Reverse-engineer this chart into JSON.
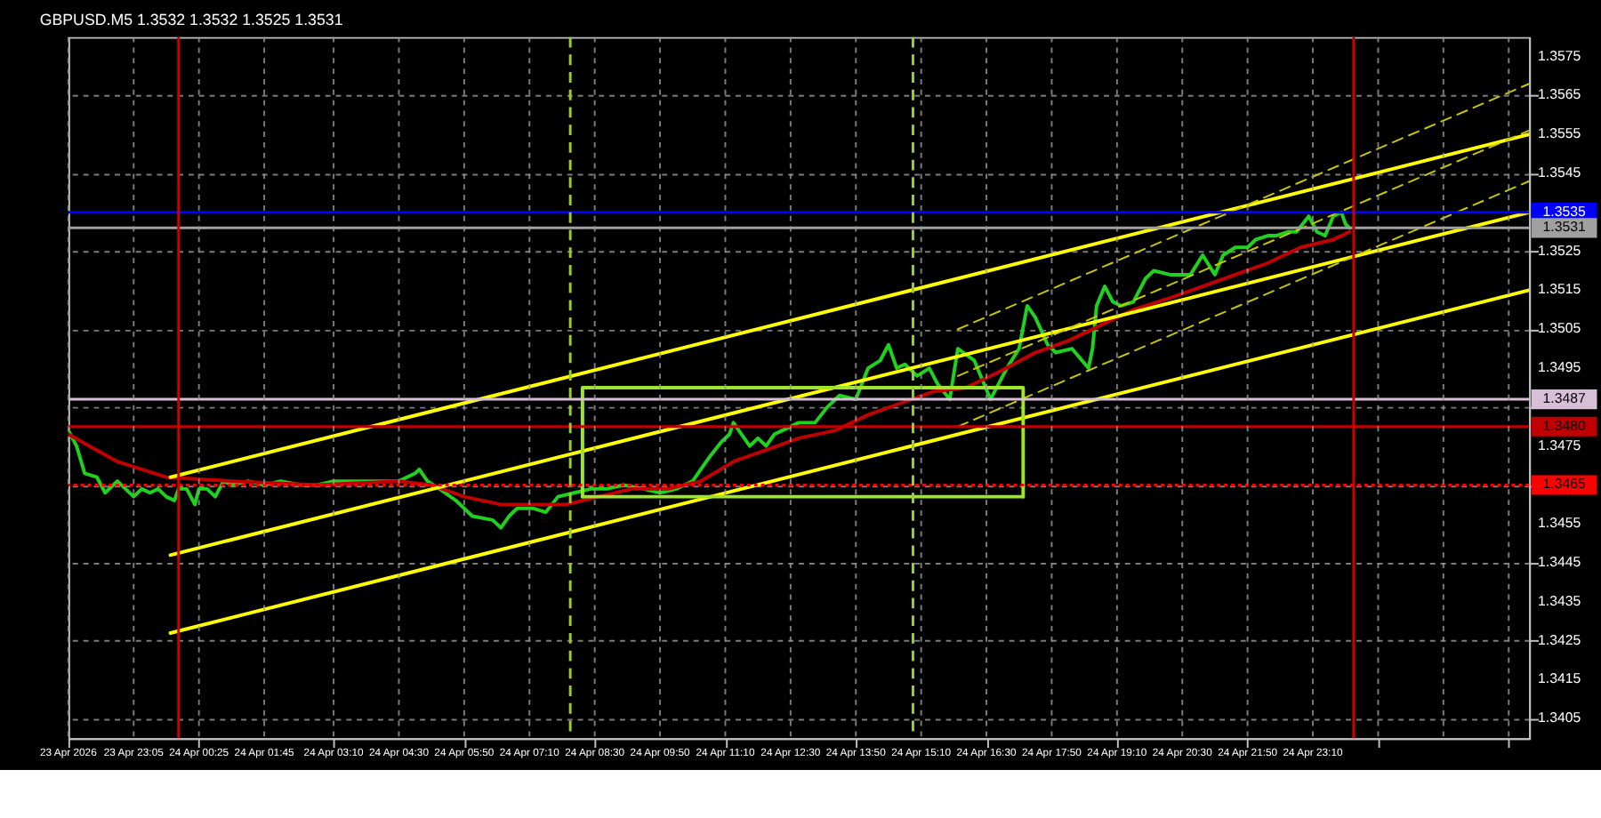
{
  "chart_data": {
    "type": "line",
    "title": "GBPUSD.M5  1.3532 1.3532 1.3525 1.3531",
    "xlim": [
      "2026-04-23T21:45",
      "2026-04-25T03:35"
    ],
    "ylim": [
      1.34,
      1.358
    ],
    "xticks": [
      {
        "value": "2026-04-23T21:45",
        "label": "23 Apr 2026"
      },
      {
        "value": "2026-04-23T23:05",
        "label": "23 Apr 23:05"
      },
      {
        "value": "2026-04-24T00:25",
        "label": "24 Apr 00:25"
      },
      {
        "value": "2026-04-24T01:45",
        "label": "24 Apr 01:45"
      },
      {
        "value": "2026-04-24T03:10",
        "label": "24 Apr 03:10"
      },
      {
        "value": "2026-04-24T04:30",
        "label": "24 Apr 04:30"
      },
      {
        "value": "2026-04-24T05:50",
        "label": "24 Apr 05:50"
      },
      {
        "value": "2026-04-24T07:10",
        "label": "24 Apr 07:10"
      },
      {
        "value": "2026-04-24T08:30",
        "label": "24 Apr 08:30"
      },
      {
        "value": "2026-04-24T09:50",
        "label": "24 Apr 09:50"
      },
      {
        "value": "2026-04-24T11:10",
        "label": "24 Apr 11:10"
      },
      {
        "value": "2026-04-24T12:30",
        "label": "24 Apr 12:30"
      },
      {
        "value": "2026-04-24T13:50",
        "label": "24 Apr 13:50"
      },
      {
        "value": "2026-04-24T15:10",
        "label": "24 Apr 15:10"
      },
      {
        "value": "2026-04-24T16:30",
        "label": "24 Apr 16:30"
      },
      {
        "value": "2026-04-24T17:50",
        "label": "24 Apr 17:50"
      },
      {
        "value": "2026-04-24T19:10",
        "label": "24 Apr 19:10"
      },
      {
        "value": "2026-04-24T20:30",
        "label": "24 Apr 20:30"
      },
      {
        "value": "2026-04-24T21:50",
        "label": "24 Apr 21:50"
      },
      {
        "value": "2026-04-24T23:10",
        "label": "24 Apr 23:10"
      },
      {
        "value": "2026-04-25T00:30",
        "label": null
      },
      {
        "value": "2026-04-25T01:50",
        "label": null
      },
      {
        "value": "2026-04-25T03:10",
        "label": null
      }
    ],
    "yticks": [
      1.3405,
      1.3415,
      1.3425,
      1.3435,
      1.3445,
      1.3455,
      {
        "value": 1.3465,
        "label": null
      },
      1.3475,
      {
        "value": 1.3485,
        "label": null
      },
      1.3495,
      1.3505,
      1.3515,
      1.3525,
      {
        "value": 1.3535,
        "label": null
      },
      1.3545,
      1.3555,
      1.3565,
      1.3575
    ],
    "grid": true,
    "series": [
      {
        "color": "#1ed21e",
        "x": [
          "2026-04-23T21:45",
          "2026-04-23T21:55",
          "2026-04-23T22:05",
          "2026-04-23T22:20",
          "2026-04-23T22:30",
          "2026-04-23T22:45",
          "2026-04-23T22:55",
          "2026-04-23T23:05",
          "2026-04-23T23:15",
          "2026-04-23T23:25",
          "2026-04-23T23:35",
          "2026-04-23T23:45",
          "2026-04-23T23:55",
          "2026-04-24T00:00",
          "2026-04-24T00:10",
          "2026-04-24T00:20",
          "2026-04-24T00:25",
          "2026-04-24T00:35",
          "2026-04-24T00:45",
          "2026-04-24T00:55",
          "2026-04-24T01:05",
          "2026-04-24T01:25",
          "2026-04-24T01:45",
          "2026-04-24T02:05",
          "2026-04-24T02:30",
          "2026-04-24T02:50",
          "2026-04-24T03:10",
          "2026-04-24T03:30",
          "2026-04-24T03:50",
          "2026-04-24T04:10",
          "2026-04-24T04:30",
          "2026-04-24T04:50",
          "2026-04-24T04:55",
          "2026-04-24T05:05",
          "2026-04-24T05:20",
          "2026-04-24T05:40",
          "2026-04-24T06:00",
          "2026-04-24T06:25",
          "2026-04-24T06:35",
          "2026-04-24T06:45",
          "2026-04-24T06:55",
          "2026-04-24T07:15",
          "2026-04-24T07:30",
          "2026-04-24T07:45",
          "2026-04-24T08:05",
          "2026-04-24T08:25",
          "2026-04-24T08:45",
          "2026-04-24T09:05",
          "2026-04-24T09:30",
          "2026-04-24T09:50",
          "2026-04-24T10:10",
          "2026-04-24T10:30",
          "2026-04-24T10:40",
          "2026-04-24T10:50",
          "2026-04-24T11:05",
          "2026-04-24T11:15",
          "2026-04-24T11:20",
          "2026-04-24T11:30",
          "2026-04-24T11:40",
          "2026-04-24T11:50",
          "2026-04-24T12:00",
          "2026-04-24T12:10",
          "2026-04-24T12:20",
          "2026-04-24T12:40",
          "2026-04-24T13:00",
          "2026-04-24T13:15",
          "2026-04-24T13:30",
          "2026-04-24T13:50",
          "2026-04-24T14:05",
          "2026-04-24T14:20",
          "2026-04-24T14:30",
          "2026-04-24T14:40",
          "2026-04-24T14:50",
          "2026-04-24T15:05",
          "2026-04-24T15:20",
          "2026-04-24T15:30",
          "2026-04-24T15:45",
          "2026-04-24T15:55",
          "2026-04-24T16:15",
          "2026-04-24T16:25",
          "2026-04-24T16:35",
          "2026-04-24T16:55",
          "2026-04-24T17:10",
          "2026-04-24T17:20",
          "2026-04-24T17:30",
          "2026-04-24T17:45",
          "2026-04-24T17:55",
          "2026-04-24T18:15",
          "2026-04-24T18:35",
          "2026-04-24T18:40",
          "2026-04-24T18:45",
          "2026-04-24T18:55",
          "2026-04-24T19:05",
          "2026-04-24T19:15",
          "2026-04-24T19:30",
          "2026-04-24T19:45",
          "2026-04-24T19:55",
          "2026-04-24T20:15",
          "2026-04-24T20:25",
          "2026-04-24T20:40",
          "2026-04-24T20:55",
          "2026-04-24T21:10",
          "2026-04-24T21:20",
          "2026-04-24T21:35",
          "2026-04-24T21:50",
          "2026-04-24T22:00",
          "2026-04-24T22:15",
          "2026-04-24T22:25",
          "2026-04-24T22:40",
          "2026-04-24T22:50",
          "2026-04-24T23:05",
          "2026-04-24T23:15",
          "2026-04-24T23:25",
          "2026-04-24T23:35",
          "2026-04-24T23:45",
          "2026-04-24T23:50",
          "2026-04-24T23:55"
        ],
        "values": [
          1.3479,
          1.3475,
          1.3468,
          1.3467,
          1.3463,
          1.3466,
          1.3464,
          1.3462,
          1.3464,
          1.3463,
          1.3464,
          1.3462,
          1.3461,
          1.3464,
          1.3464,
          1.346,
          1.3464,
          1.3464,
          1.3462,
          1.3466,
          1.3465,
          1.3466,
          1.3465,
          1.3466,
          1.3465,
          1.3465,
          1.3466,
          1.3466,
          1.3466,
          1.3466,
          1.3466,
          1.3468,
          1.3469,
          1.3466,
          1.3464,
          1.3461,
          1.3457,
          1.3456,
          1.3454,
          1.3457,
          1.3459,
          1.3459,
          1.3458,
          1.3462,
          1.3463,
          1.3464,
          1.3464,
          1.3465,
          1.3464,
          1.3463,
          1.3464,
          1.3466,
          1.3469,
          1.3472,
          1.3476,
          1.3478,
          1.3481,
          1.3478,
          1.3475,
          1.3477,
          1.3475,
          1.3478,
          1.3479,
          1.3481,
          1.3481,
          1.3485,
          1.3488,
          1.3487,
          1.3495,
          1.3497,
          1.3501,
          1.3495,
          1.3496,
          1.3493,
          1.3495,
          1.3491,
          1.3487,
          1.35,
          1.3497,
          1.3492,
          1.3487,
          1.3495,
          1.35,
          1.3511,
          1.3508,
          1.3501,
          1.3499,
          1.35,
          1.3495,
          1.35,
          1.3511,
          1.3516,
          1.3512,
          1.3511,
          1.3512,
          1.3518,
          1.352,
          1.3519,
          1.3519,
          1.3519,
          1.3524,
          1.3519,
          1.3524,
          1.3526,
          1.3526,
          1.3528,
          1.3529,
          1.3529,
          1.353,
          1.353,
          1.3534,
          1.353,
          1.3529,
          1.3534,
          1.3535,
          1.3532,
          1.3531
        ]
      },
      {
        "color": "#c00000",
        "x": [
          "2026-04-23T21:45",
          "2026-04-23T22:45",
          "2026-04-23T23:45",
          "2026-04-24T01:05",
          "2026-04-24T02:50",
          "2026-04-24T04:30",
          "2026-04-24T05:10",
          "2026-04-24T05:50",
          "2026-04-24T06:35",
          "2026-04-24T07:15",
          "2026-04-24T07:55",
          "2026-04-24T08:35",
          "2026-04-24T09:15",
          "2026-04-24T10:00",
          "2026-04-24T10:40",
          "2026-04-24T11:20",
          "2026-04-24T12:00",
          "2026-04-24T12:40",
          "2026-04-24T13:25",
          "2026-04-24T14:05",
          "2026-04-24T14:45",
          "2026-04-24T15:25",
          "2026-04-24T16:05",
          "2026-04-24T16:45",
          "2026-04-24T17:30",
          "2026-04-24T18:10",
          "2026-04-24T18:50",
          "2026-04-24T19:30",
          "2026-04-24T20:15",
          "2026-04-24T20:55",
          "2026-04-24T21:35",
          "2026-04-24T22:15",
          "2026-04-24T22:55",
          "2026-04-24T23:35",
          "2026-04-24T23:55"
        ],
        "values": [
          1.3478,
          1.3471,
          1.3467,
          1.3466,
          1.3465,
          1.3466,
          1.3465,
          1.3462,
          1.346,
          1.346,
          1.346,
          1.3462,
          1.3464,
          1.3464,
          1.3466,
          1.3471,
          1.3474,
          1.3477,
          1.3479,
          1.3483,
          1.3486,
          1.3489,
          1.349,
          1.3494,
          1.3499,
          1.3502,
          1.3506,
          1.351,
          1.3513,
          1.3516,
          1.3519,
          1.3522,
          1.3526,
          1.3528,
          1.353
        ]
      },
      {
        "color": "#ffff00",
        "x": [
          "2026-04-23T23:50",
          "2026-04-25T03:35"
        ],
        "values": [
          1.3467,
          1.3555
        ]
      },
      {
        "color": "#ffff00",
        "x": [
          "2026-04-23T23:50",
          "2026-04-25T03:35"
        ],
        "values": [
          1.3447,
          1.3535
        ]
      },
      {
        "color": "#ffff00",
        "x": [
          "2026-04-23T23:50",
          "2026-04-25T03:35"
        ],
        "values": [
          1.3427,
          1.3515
        ]
      },
      {
        "color": "#c8c800",
        "line_style": "dashed",
        "x": [
          "2026-04-24T15:55",
          "2026-04-25T03:35"
        ],
        "values": [
          1.3505,
          1.3568
        ]
      },
      {
        "color": "#c8c800",
        "line_style": "dashed",
        "x": [
          "2026-04-24T15:55",
          "2026-04-25T03:35"
        ],
        "values": [
          1.3493,
          1.3556
        ]
      },
      {
        "color": "#c8c800",
        "line_style": "dashed",
        "x": [
          "2026-04-24T15:55",
          "2026-04-25T03:35"
        ],
        "values": [
          1.348,
          1.3543
        ]
      },
      {
        "color": "#9ee52e",
        "x": [
          "2026-04-24T08:15",
          "2026-04-24T08:15",
          "2026-04-24T17:15",
          "2026-04-24T17:15"
        ],
        "values": [
          1.3462,
          1.349,
          1.349,
          1.3462
        ]
      },
      {
        "color": "#9ee52e",
        "x": [
          "2026-04-24T08:15",
          "2026-04-24T17:15"
        ],
        "values": [
          1.3462,
          1.3462
        ]
      }
    ],
    "ref_lines": [
      {
        "axis": "y",
        "value": 1.3535,
        "label": "1.3535",
        "color": "#0000ff"
      },
      {
        "axis": "y",
        "value": 1.3531,
        "label": "1.3531",
        "color": "#a0a0a0"
      },
      {
        "axis": "y",
        "value": 1.3487,
        "label": "1.3487",
        "color": "#d8bfd8"
      },
      {
        "axis": "y",
        "value": 1.348,
        "label": "1.3480",
        "color": "#c00000"
      },
      {
        "axis": "y",
        "value": 1.3465,
        "label": "1.3465",
        "color": "#ff0000",
        "line_style": "dotted"
      },
      {
        "axis": "x",
        "value": "2026-04-24T00:00",
        "color": "#d00000"
      },
      {
        "axis": "x",
        "value": "2026-04-25T00:00",
        "color": "#d00000"
      },
      {
        "axis": "x",
        "value": "2026-04-24T08:00",
        "color": "#9acd32",
        "line_style": "dashed"
      },
      {
        "axis": "x",
        "value": "2026-04-24T15:00",
        "color": "#9acd32",
        "line_style": "dashed"
      }
    ]
  }
}
